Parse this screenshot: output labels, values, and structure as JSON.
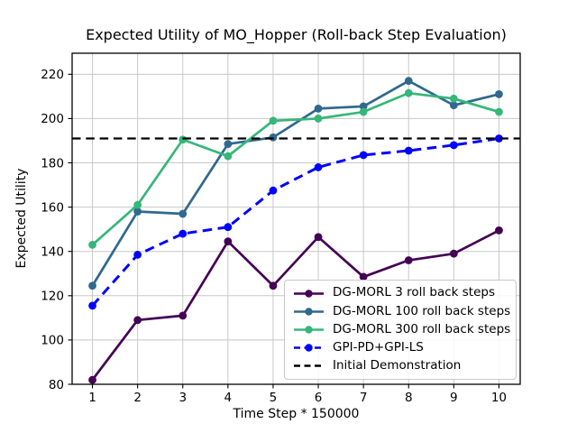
{
  "chart_data": {
    "type": "line",
    "title": "Expected Utility of MO_Hopper (Roll-back Step Evaluation)",
    "xlabel": "Time Step * 150000",
    "ylabel": "Expected Utility",
    "x": [
      1,
      2,
      3,
      4,
      5,
      6,
      7,
      8,
      9,
      10
    ],
    "xticks": [
      1,
      2,
      3,
      4,
      5,
      6,
      7,
      8,
      9,
      10
    ],
    "yticks": [
      80,
      100,
      120,
      140,
      160,
      180,
      200,
      220
    ],
    "xlim": [
      0.55,
      10.47
    ],
    "ylim": [
      80,
      229.5
    ],
    "grid": true,
    "grid_color": "#c8c8c8",
    "legend_position": "lower right",
    "series": [
      {
        "name": "DG-MORL 3 roll back steps",
        "color": "#440154",
        "line_style": "solid",
        "marker": "circle",
        "values": [
          82,
          109,
          111,
          144.5,
          124.5,
          146.5,
          128.5,
          136,
          139,
          149.5
        ]
      },
      {
        "name": "DG-MORL 100 roll back steps",
        "color": "#31688e",
        "line_style": "solid",
        "marker": "circle",
        "values": [
          124.5,
          158,
          157,
          188.5,
          191.5,
          204.5,
          205.5,
          217,
          206,
          211
        ]
      },
      {
        "name": "DG-MORL 300 roll back steps",
        "color": "#35b779",
        "line_style": "solid",
        "marker": "circle",
        "values": [
          143,
          161,
          190.5,
          183,
          199,
          200,
          203,
          211.5,
          209,
          203
        ]
      },
      {
        "name": "GPI-PD+GPI-LS",
        "color": "#0000ff",
        "line_style": "dashed",
        "marker": "circle",
        "values": [
          115.5,
          138.5,
          148,
          151,
          167.5,
          178,
          183.5,
          185.5,
          188,
          191
        ]
      },
      {
        "name": "Initial Demonstration",
        "color": "#000000",
        "line_style": "dashed",
        "marker": "none",
        "hline": 191
      }
    ]
  }
}
